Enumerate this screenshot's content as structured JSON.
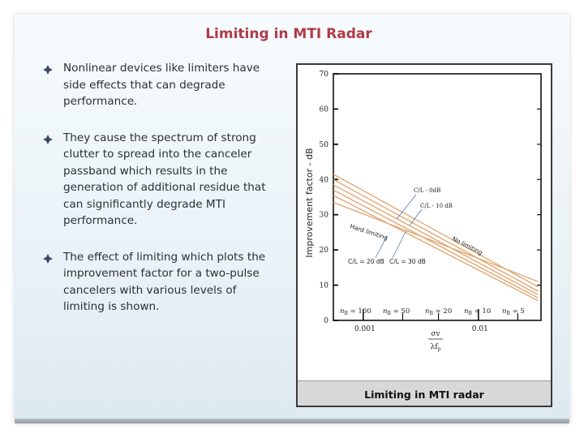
{
  "slide": {
    "title": "Limiting in MTI Radar",
    "bullets": [
      "Nonlinear devices like limiters have side effects that can degrade performance.",
      "They cause the spectrum of strong clutter to spread into the canceler passband which results in the generation of additional residue that can significantly degrade MTI performance.",
      "The effect of limiting which plots the improvement factor for a two-pulse cancelers with various levels of limiting is shown."
    ],
    "bullet_icon": "diamond-bullet-icon",
    "figure_caption": "Limiting in MTI radar"
  },
  "colors": {
    "title": "#b23a48",
    "curves": "#e2a36a",
    "text": "#2b2f36"
  },
  "chart_data": {
    "type": "line",
    "title": "",
    "ylabel": "Improvement factor - dB",
    "xlabel_numerator": "σv",
    "xlabel_denominator": "λf",
    "xlabel_sub": "p",
    "xscale": "log",
    "xlim": [
      0.00055,
      0.035
    ],
    "ylim": [
      0,
      70
    ],
    "x_ticks": [
      {
        "value": 0.001,
        "label": "0.001"
      },
      {
        "value": 0.01,
        "label": "0.01"
      }
    ],
    "y_ticks": [
      0,
      10,
      20,
      30,
      40,
      50,
      60,
      70
    ],
    "series": [
      {
        "name": "C/L = 0 dB",
        "x": [
          0.00055,
          0.033
        ],
        "y": [
          41.5,
          9.5
        ]
      },
      {
        "name": "C/L = 10 dB",
        "x": [
          0.00055,
          0.033
        ],
        "y": [
          40.0,
          8.3
        ]
      },
      {
        "name": "C/L = 20 dB",
        "x": [
          0.00055,
          0.033
        ],
        "y": [
          38.5,
          7.3
        ]
      },
      {
        "name": "C/L = 30 dB",
        "x": [
          0.00055,
          0.033
        ],
        "y": [
          37.0,
          6.4
        ]
      },
      {
        "name": "Hard limiting",
        "x": [
          0.00055,
          0.033
        ],
        "y": [
          35.5,
          5.6
        ]
      },
      {
        "name": "No limiting",
        "x": [
          0.00055,
          0.033
        ],
        "y": [
          33.5,
          11.0
        ]
      }
    ],
    "n_labels": [
      {
        "prefix": "n",
        "sub": "B",
        "text": " = 100"
      },
      {
        "prefix": "n",
        "sub": "B",
        "text": " = 50"
      },
      {
        "prefix": "n",
        "sub": "B",
        "text": " = 20"
      },
      {
        "prefix": "n",
        "sub": "B",
        "text": " = 10"
      },
      {
        "prefix": "n",
        "sub": "B",
        "text": " = 5"
      }
    ],
    "annotations": {
      "cl0": "C/L - 0dB",
      "cl10": "C/L - 10 dB",
      "hard": "Hard limiting",
      "none": "No limiting",
      "cl20": "C/L = 20 dB",
      "cl30": "C/L = 30 dB"
    }
  }
}
